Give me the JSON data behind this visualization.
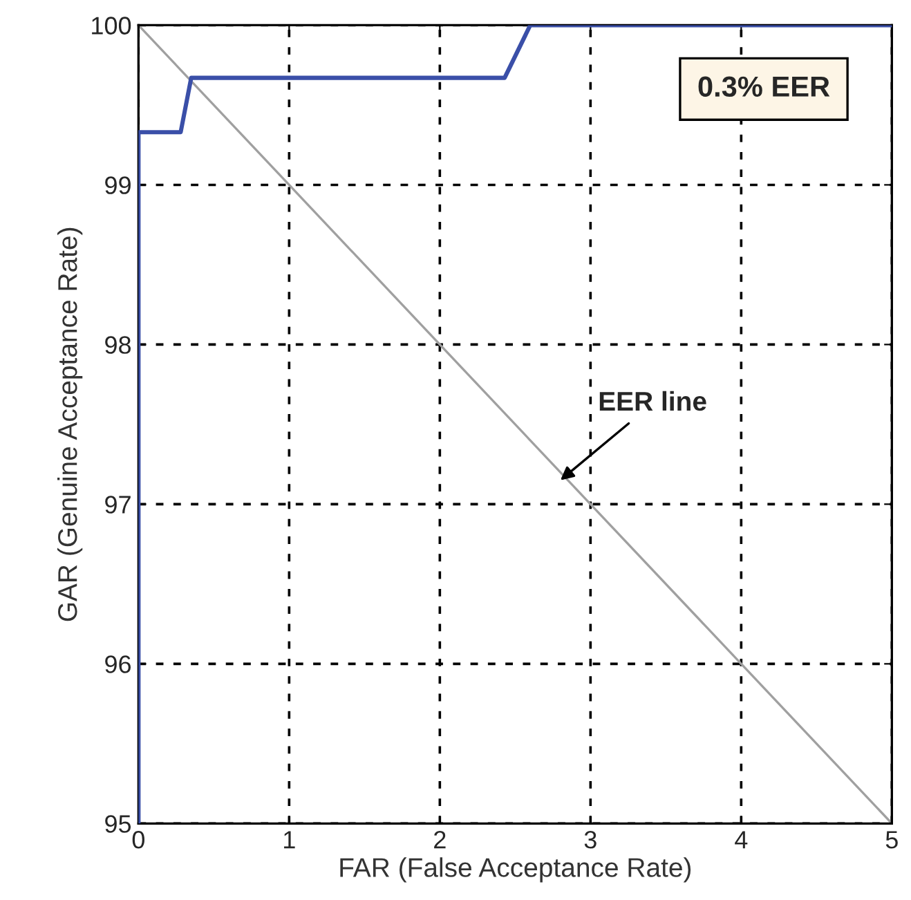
{
  "chart_data": {
    "type": "line",
    "xlabel": "FAR (False Acceptance Rate)",
    "ylabel": "GAR (Genuine Acceptance Rate)",
    "series": [
      {
        "color": "#3a4fa8",
        "x": [
          0,
          0,
          0.28,
          0.35,
          2.43,
          2.6,
          5
        ],
        "values": [
          95,
          99.33,
          99.33,
          99.67,
          99.67,
          100,
          100
        ]
      },
      {
        "color": "#a0a0a0",
        "x": [
          0,
          5
        ],
        "values": [
          100,
          95
        ]
      }
    ],
    "xlim": [
      0,
      5
    ],
    "ylim": [
      95,
      100
    ],
    "xticks": [
      0,
      1,
      2,
      3,
      4,
      5
    ],
    "yticks": [
      95,
      96,
      97,
      98,
      99,
      100
    ],
    "grid": true,
    "marker": "none",
    "line_style": "solid",
    "legend": false,
    "annotations": [
      "0.3% EER",
      {
        "text": "EER line",
        "x": 2.8,
        "y": 97.15
      }
    ]
  }
}
